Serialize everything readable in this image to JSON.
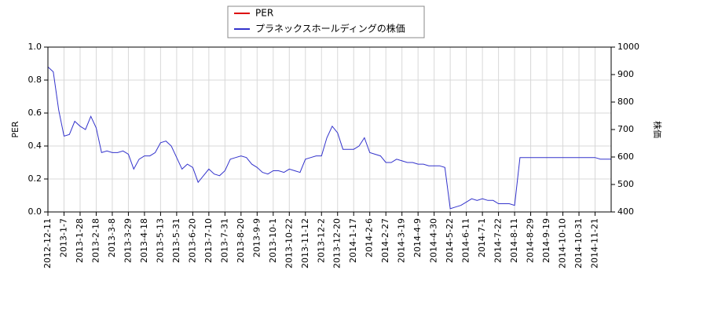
{
  "chart_data": {
    "type": "line",
    "categories": [
      "2012-12-11",
      null,
      null,
      "2013-1-7",
      null,
      null,
      "2013-1-28",
      null,
      null,
      "2013-2-18",
      null,
      null,
      "2013-3-8",
      null,
      null,
      "2013-3-29",
      null,
      null,
      "2013-4-18",
      null,
      null,
      "2013-5-13",
      null,
      null,
      "2013-5-31",
      null,
      null,
      "2013-6-20",
      null,
      null,
      "2013-7-10",
      null,
      null,
      "2013-7-31",
      null,
      null,
      "2013-8-20",
      null,
      null,
      "2013-9-9",
      null,
      null,
      "2013-10-1",
      null,
      null,
      "2013-10-22",
      null,
      null,
      "2013-11-12",
      null,
      null,
      "2013-12-2",
      null,
      null,
      "2013-12-20",
      null,
      null,
      "2014-1-17",
      null,
      null,
      "2014-2-6",
      null,
      null,
      "2014-2-27",
      null,
      null,
      "2014-3-19",
      null,
      null,
      "2014-4-9",
      null,
      null,
      "2014-4-30",
      null,
      null,
      "2014-5-22",
      null,
      null,
      "2014-6-11",
      null,
      null,
      "2014-7-1",
      null,
      null,
      "2014-7-22",
      null,
      null,
      "2014-8-11",
      null,
      null,
      "2014-8-29",
      null,
      null,
      "2014-9-19",
      null,
      null,
      "2014-10-10",
      null,
      null,
      "2014-10-31",
      null,
      null,
      "2014-11-21",
      null,
      null,
      null
    ],
    "series": [
      {
        "name": "PER",
        "color": "#dd0000",
        "values": [
          null,
          null,
          null,
          null,
          null,
          null,
          null,
          null,
          null,
          null,
          null,
          null,
          null,
          null,
          null,
          null,
          null,
          null,
          null,
          null,
          null,
          null,
          null,
          null,
          null,
          null,
          null,
          null,
          null,
          null,
          null,
          null,
          null,
          null,
          null,
          null,
          null,
          null,
          null,
          null,
          null,
          null,
          null,
          null,
          null,
          null,
          null,
          null,
          null,
          null,
          null,
          null,
          null,
          null,
          null,
          null,
          null,
          null,
          null,
          null,
          null,
          null,
          null,
          null,
          null,
          null,
          null,
          null,
          null,
          null,
          null,
          null,
          null,
          null,
          null,
          null,
          null,
          null,
          null,
          null,
          null,
          null,
          null,
          null,
          null,
          null,
          null,
          null,
          null,
          null,
          null,
          null,
          null,
          null,
          null,
          null,
          null,
          null,
          null,
          null,
          null,
          null,
          null,
          null,
          null,
          null
        ]
      },
      {
        "name": "プラネックスホールディングの株価",
        "color": "#3333cc",
        "axis": "y2",
        "values": [
          928,
          910,
          772,
          676,
          682,
          730,
          712,
          700,
          748,
          706,
          616,
          622,
          616,
          616,
          622,
          610,
          556,
          592,
          604,
          604,
          616,
          652,
          658,
          640,
          598,
          556,
          574,
          562,
          508,
          532,
          556,
          538,
          532,
          550,
          592,
          598,
          604,
          598,
          574,
          562,
          544,
          538,
          550,
          550,
          544,
          556,
          550,
          544,
          592,
          598,
          604,
          604,
          670,
          712,
          688,
          628,
          628,
          628,
          640,
          670,
          616,
          610,
          604,
          580,
          580,
          592,
          586,
          580,
          580,
          574,
          574,
          568,
          568,
          568,
          562,
          412,
          418,
          424,
          436,
          448,
          442,
          448,
          442,
          442,
          430,
          430,
          430,
          424,
          598,
          598,
          598,
          598,
          598,
          598,
          598,
          598,
          598,
          598,
          598,
          598,
          598,
          598,
          598,
          592,
          592,
          592
        ]
      }
    ],
    "ylabel": "PER",
    "y2label": "株価",
    "ylim": [
      0,
      1
    ],
    "yticks": [
      {
        "value": 0,
        "label": "0.0"
      },
      0.2,
      0.4,
      0.6,
      0.8,
      {
        "value": 1,
        "label": "1.0"
      }
    ],
    "y2lim": [
      400,
      1000
    ],
    "y2ticks": [
      400,
      500,
      600,
      700,
      800,
      900,
      1000
    ],
    "grid": true
  }
}
